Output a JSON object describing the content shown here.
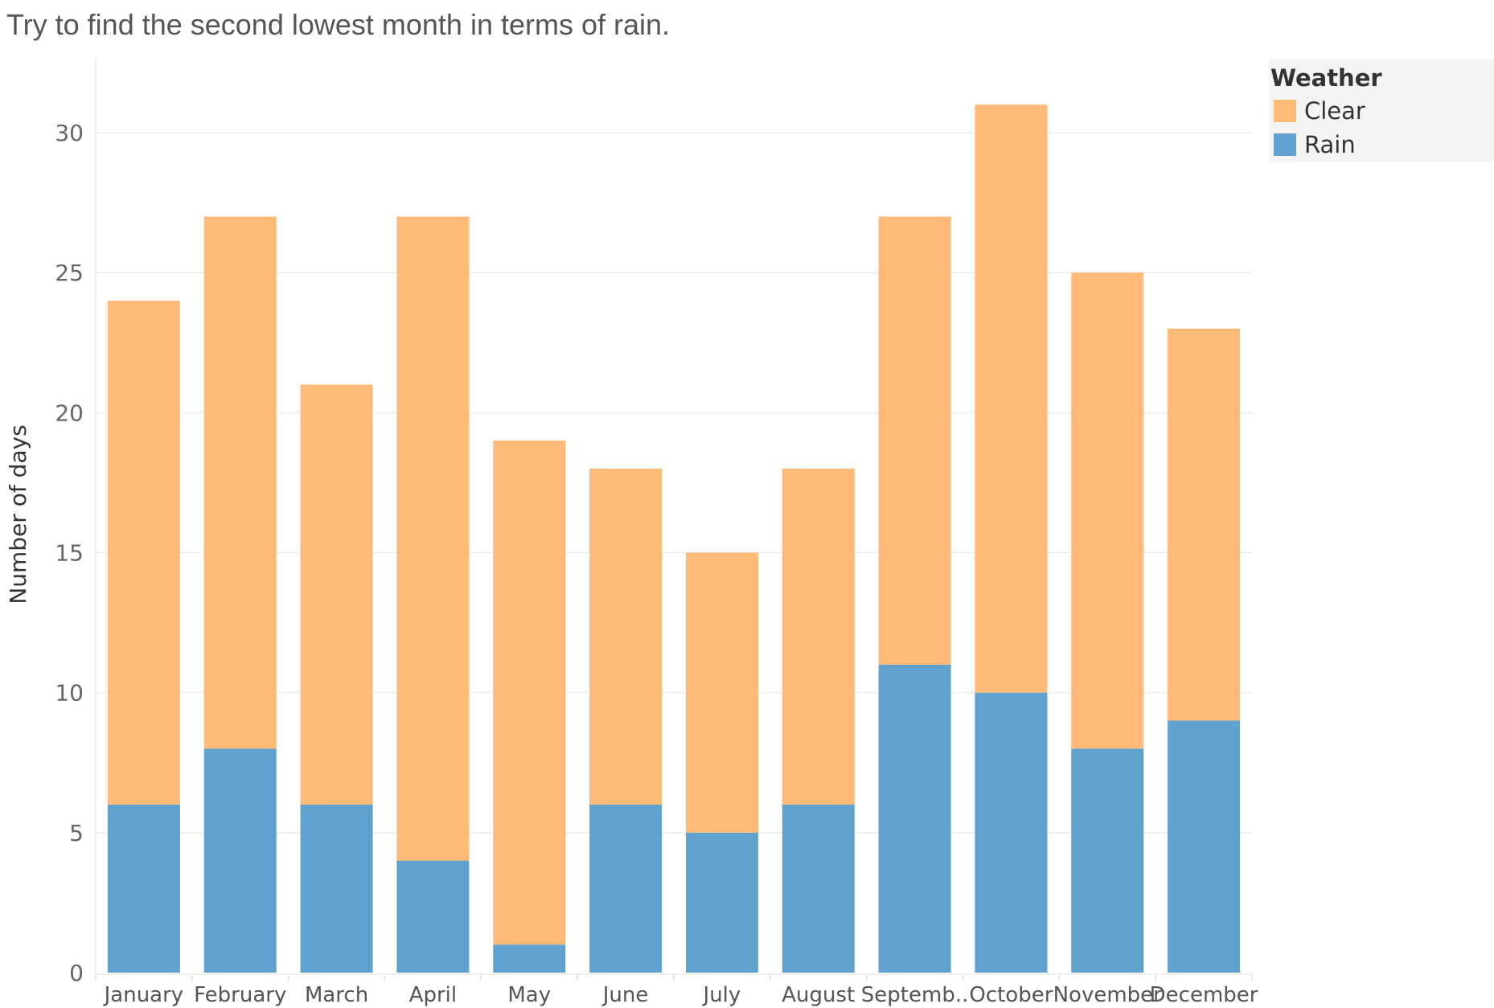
{
  "title": "Try to find the second lowest month in terms of rain.",
  "legend": {
    "title": "Weather",
    "items": [
      {
        "label": "Clear",
        "color": "#FFBA77"
      },
      {
        "label": "Rain",
        "color": "#60A2CE"
      }
    ]
  },
  "chart_data": {
    "type": "bar",
    "stacked": true,
    "title": "Try to find the second lowest month in terms of rain.",
    "xlabel": "",
    "ylabel": "Number of days",
    "ylim": [
      0,
      32
    ],
    "yticks": [
      0,
      5,
      10,
      15,
      20,
      25,
      30
    ],
    "grid": true,
    "legend_position": "right",
    "categories": [
      "January",
      "February",
      "March",
      "April",
      "May",
      "June",
      "July",
      "August",
      "Septemb..",
      "October",
      "November",
      "December"
    ],
    "series": [
      {
        "name": "Rain",
        "color": "#60A2CE",
        "values": [
          6,
          8,
          6,
          4,
          1,
          6,
          5,
          6,
          11,
          10,
          8,
          9
        ]
      },
      {
        "name": "Clear",
        "color": "#FFBA77",
        "values": [
          18,
          19,
          15,
          23,
          18,
          12,
          10,
          12,
          16,
          21,
          17,
          14
        ]
      }
    ]
  }
}
